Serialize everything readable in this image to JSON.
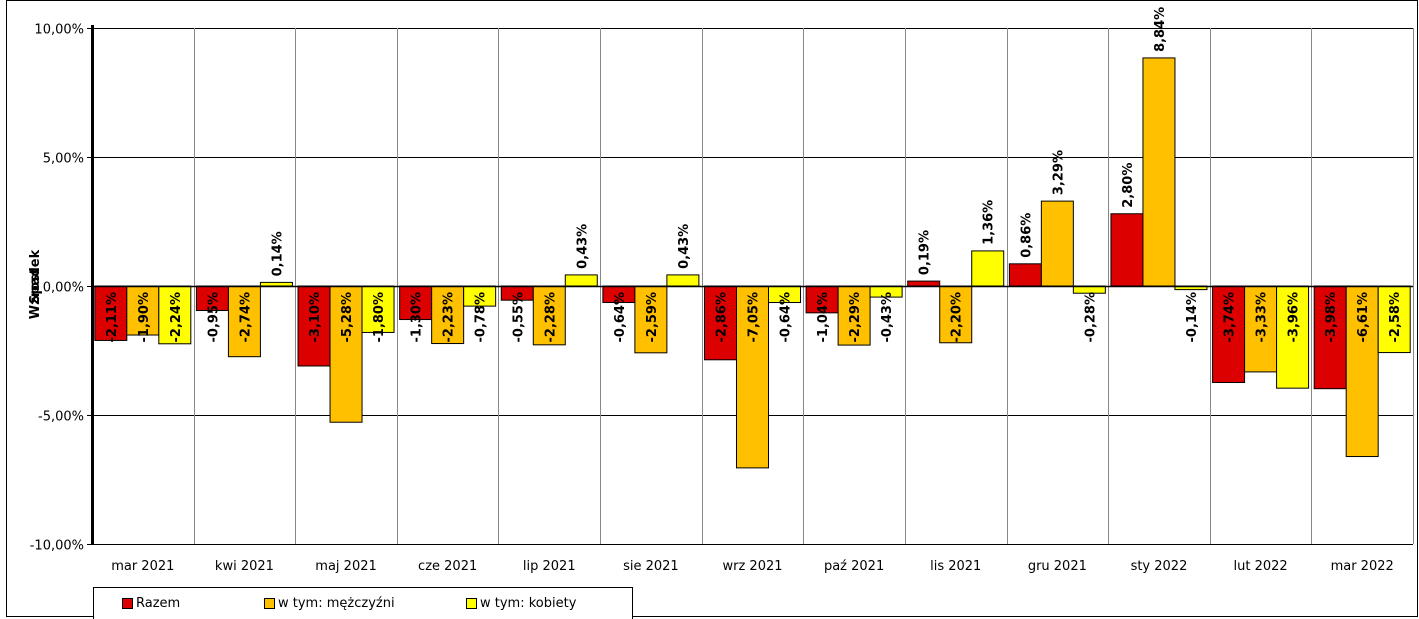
{
  "chart_data": {
    "type": "bar",
    "title": "",
    "xlabel": "",
    "ylabel_top": "Wzrost",
    "ylabel_bottom": "Spadek",
    "ylim": [
      -10,
      10
    ],
    "yticks": [
      {
        "value": 10,
        "label": "10,00%"
      },
      {
        "value": 5,
        "label": "5,00%"
      },
      {
        "value": 0,
        "label": "0,00%"
      },
      {
        "value": -5,
        "label": "-5,00%"
      },
      {
        "value": -10,
        "label": "-10,00%"
      }
    ],
    "grid": true,
    "legend_position": "bottom-left",
    "categories": [
      "mar 2021",
      "kwi 2021",
      "maj 2021",
      "cze 2021",
      "lip 2021",
      "sie 2021",
      "wrz 2021",
      "paź 2021",
      "lis 2021",
      "gru 2021",
      "sty 2022",
      "lut 2022",
      "mar 2022"
    ],
    "series": [
      {
        "name": "Razem",
        "color": "#dd0000",
        "values": [
          -2.11,
          -0.95,
          -3.1,
          -1.3,
          -0.55,
          -0.64,
          -2.86,
          -1.04,
          0.19,
          0.86,
          2.8,
          -3.74,
          -3.98
        ],
        "labels": [
          "-2,11%",
          "-0,95%",
          "-3,10%",
          "-1,30%",
          "-0,55%",
          "-0,64%",
          "-2,86%",
          "-1,04%",
          "0,19%",
          "0,86%",
          "2,80%",
          "-3,74%",
          "-3,98%"
        ]
      },
      {
        "name": "w tym: mężczyźni",
        "color": "#ffc000",
        "values": [
          -1.9,
          -2.74,
          -5.28,
          -2.23,
          -2.28,
          -2.59,
          -7.05,
          -2.29,
          -2.2,
          3.29,
          8.84,
          -3.33,
          -6.61
        ],
        "labels": [
          "-1,90%",
          "-2,74%",
          "-5,28%",
          "-2,23%",
          "-2,28%",
          "-2,59%",
          "-7,05%",
          "-2,29%",
          "-2,20%",
          "3,29%",
          "8,84%",
          "-3,33%",
          "-6,61%"
        ]
      },
      {
        "name": "w tym: kobiety",
        "color": "#ffff00",
        "values": [
          -2.24,
          0.14,
          -1.8,
          -0.78,
          0.43,
          0.43,
          -0.64,
          -0.43,
          1.36,
          -0.28,
          -0.14,
          -3.96,
          -2.58
        ],
        "labels": [
          "-2,24%",
          "0,14%",
          "-1,80%",
          "-0,78%",
          "0,43%",
          "0,43%",
          "-0,64%",
          "-0,43%",
          "1,36%",
          "-0,28%",
          "-0,14%",
          "-3,96%",
          "-2,58%"
        ]
      }
    ]
  }
}
